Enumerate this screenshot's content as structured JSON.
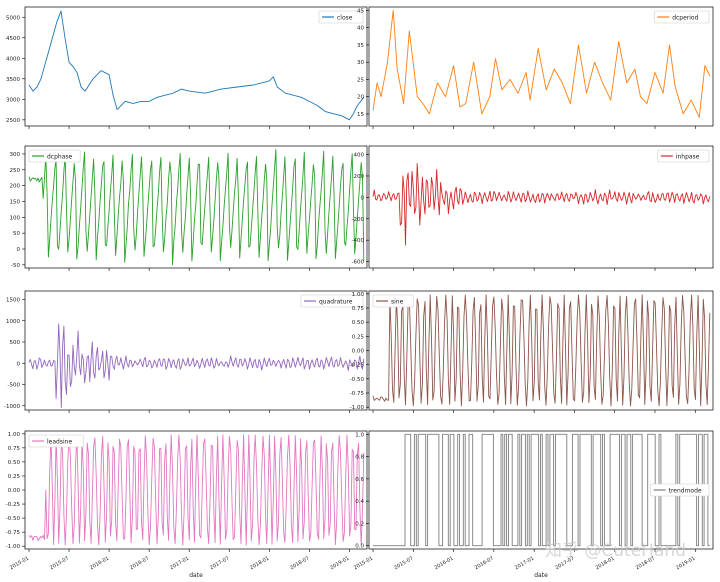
{
  "watermark": "知乎 @CuteHand",
  "x_axis": {
    "label": "date",
    "ticks": [
      "2015-01",
      "2015-07",
      "2016-01",
      "2016-07",
      "2017-01",
      "2017-07",
      "2018-01",
      "2018-07",
      "2019-01"
    ]
  },
  "chart_data": [
    {
      "type": "line",
      "name": "close",
      "legend": "close",
      "legend_pos": "top-right",
      "color": "#1f77b4",
      "ylim": [
        2350,
        5250
      ],
      "yticks": [
        "2500",
        "3000",
        "3500",
        "4000",
        "4500",
        "5000"
      ],
      "ytick_values": [
        2500,
        3000,
        3500,
        4000,
        4500,
        5000
      ],
      "x": [
        2015.0,
        2015.05,
        2015.1,
        2015.15,
        2015.2,
        2015.25,
        2015.3,
        2015.35,
        2015.4,
        2015.45,
        2015.5,
        2015.55,
        2015.6,
        2015.65,
        2015.7,
        2015.8,
        2015.9,
        2016.0,
        2016.05,
        2016.1,
        2016.2,
        2016.3,
        2016.4,
        2016.5,
        2016.6,
        2016.7,
        2016.8,
        2016.9,
        2017.0,
        2017.2,
        2017.4,
        2017.6,
        2017.8,
        2018.0,
        2018.05,
        2018.1,
        2018.2,
        2018.3,
        2018.4,
        2018.5,
        2018.6,
        2018.7,
        2018.8,
        2018.9,
        2019.0,
        2019.05,
        2019.1,
        2019.18
      ],
      "values": [
        3350,
        3200,
        3300,
        3500,
        3850,
        4200,
        4550,
        4900,
        5150,
        4500,
        3900,
        3800,
        3650,
        3300,
        3200,
        3500,
        3700,
        3600,
        3100,
        2750,
        2950,
        2900,
        2950,
        2950,
        3050,
        3100,
        3150,
        3250,
        3200,
        3150,
        3250,
        3300,
        3350,
        3450,
        3550,
        3300,
        3150,
        3100,
        3050,
        2950,
        2850,
        2700,
        2650,
        2600,
        2500,
        2650,
        2850,
        3050
      ]
    },
    {
      "type": "line",
      "name": "dcperiod",
      "legend": "dcperiod",
      "legend_pos": "top-right",
      "color": "#ff7f0e",
      "ylim": [
        11.5,
        46
      ],
      "yticks": [
        "15",
        "20",
        "25",
        "30",
        "35",
        "40",
        "45"
      ],
      "ytick_values": [
        15,
        20,
        25,
        30,
        35,
        40,
        45
      ],
      "x": [
        2015.0,
        2015.05,
        2015.1,
        2015.18,
        2015.25,
        2015.3,
        2015.38,
        2015.45,
        2015.55,
        2015.62,
        2015.7,
        2015.8,
        2015.9,
        2016.0,
        2016.08,
        2016.15,
        2016.25,
        2016.35,
        2016.45,
        2016.52,
        2016.6,
        2016.7,
        2016.8,
        2016.9,
        2016.95,
        2017.05,
        2017.15,
        2017.25,
        2017.35,
        2017.45,
        2017.55,
        2017.65,
        2017.75,
        2017.85,
        2017.95,
        2018.05,
        2018.15,
        2018.25,
        2018.32,
        2018.4,
        2018.5,
        2018.6,
        2018.68,
        2018.75,
        2018.85,
        2018.95,
        2019.05,
        2019.12,
        2019.18
      ],
      "values": [
        16,
        24,
        20,
        30,
        45,
        28,
        18,
        39,
        20,
        18,
        15,
        24,
        20,
        29,
        17,
        18,
        30,
        15,
        20,
        31,
        22,
        25,
        21,
        27,
        19,
        34,
        22,
        28,
        24,
        18,
        35,
        21,
        30,
        24,
        19,
        36,
        24,
        28,
        20,
        18,
        27,
        21,
        35,
        23,
        15,
        19,
        14,
        29,
        26
      ]
    },
    {
      "type": "line",
      "name": "dcphase",
      "legend": "dcphase",
      "legend_pos": "top-left",
      "color": "#2ca02c",
      "ylim": [
        -60,
        325
      ],
      "yticks": [
        "-50",
        "0",
        "50",
        "100",
        "150",
        "200",
        "250",
        "300"
      ],
      "ytick_values": [
        -50,
        0,
        50,
        100,
        150,
        200,
        250,
        300
      ],
      "generator": "sawtooth",
      "cycles": 35
    },
    {
      "type": "line",
      "name": "inhpase",
      "legend": "inhpase",
      "legend_pos": "top-right",
      "color": "#d62728",
      "ylim": [
        -660,
        480
      ],
      "yticks": [
        "-600",
        "-400",
        "-200",
        "0",
        "200",
        "400"
      ],
      "ytick_values": [
        -600,
        -400,
        -200,
        0,
        200,
        400
      ],
      "generator": "oscillation-decay",
      "amplitude": 400
    },
    {
      "type": "line",
      "name": "quadrature",
      "legend": "quadrature",
      "legend_pos": "top-right",
      "color": "#9467bd",
      "ylim": [
        -1100,
        1700
      ],
      "yticks": [
        "-1000",
        "-500",
        "0",
        "500",
        "1000",
        "1500"
      ],
      "ytick_values": [
        -1000,
        -500,
        0,
        500,
        1000,
        1500
      ],
      "generator": "oscillation-decay",
      "amplitude": 1000
    },
    {
      "type": "line",
      "name": "sine",
      "legend": "sine",
      "legend_pos": "top-left",
      "color": "#8c564b",
      "ylim": [
        -1.05,
        1.05
      ],
      "yticks": [
        "-1.00",
        "-0.75",
        "-0.50",
        "-0.25",
        "0.00",
        "0.25",
        "0.50",
        "0.75",
        "1.00"
      ],
      "ytick_values": [
        -1,
        -0.75,
        -0.5,
        -0.25,
        0,
        0.25,
        0.5,
        0.75,
        1
      ],
      "generator": "oscillation",
      "cycles": 48
    },
    {
      "type": "line",
      "name": "leadsine",
      "legend": "leadsine",
      "legend_pos": "top-left",
      "color": "#e377c2",
      "ylim": [
        -1.05,
        1.05
      ],
      "yticks": [
        "-1.00",
        "-0.75",
        "-0.50",
        "-0.25",
        "0.00",
        "0.25",
        "0.50",
        "0.75",
        "1.00"
      ],
      "ytick_values": [
        -1,
        -0.75,
        -0.5,
        -0.25,
        0,
        0.25,
        0.5,
        0.75,
        1
      ],
      "generator": "oscillation",
      "cycles": 52
    },
    {
      "type": "line",
      "name": "trendmode",
      "legend": "trendmode",
      "legend_pos": "center-right",
      "color": "#7f7f7f",
      "ylim": [
        -0.03,
        1.03
      ],
      "yticks": [
        "0.0",
        "0.2",
        "0.4",
        "0.6",
        "0.8",
        "1.0"
      ],
      "ytick_values": [
        0,
        0.2,
        0.4,
        0.6,
        0.8,
        1.0
      ],
      "generator": "binary-step"
    }
  ]
}
